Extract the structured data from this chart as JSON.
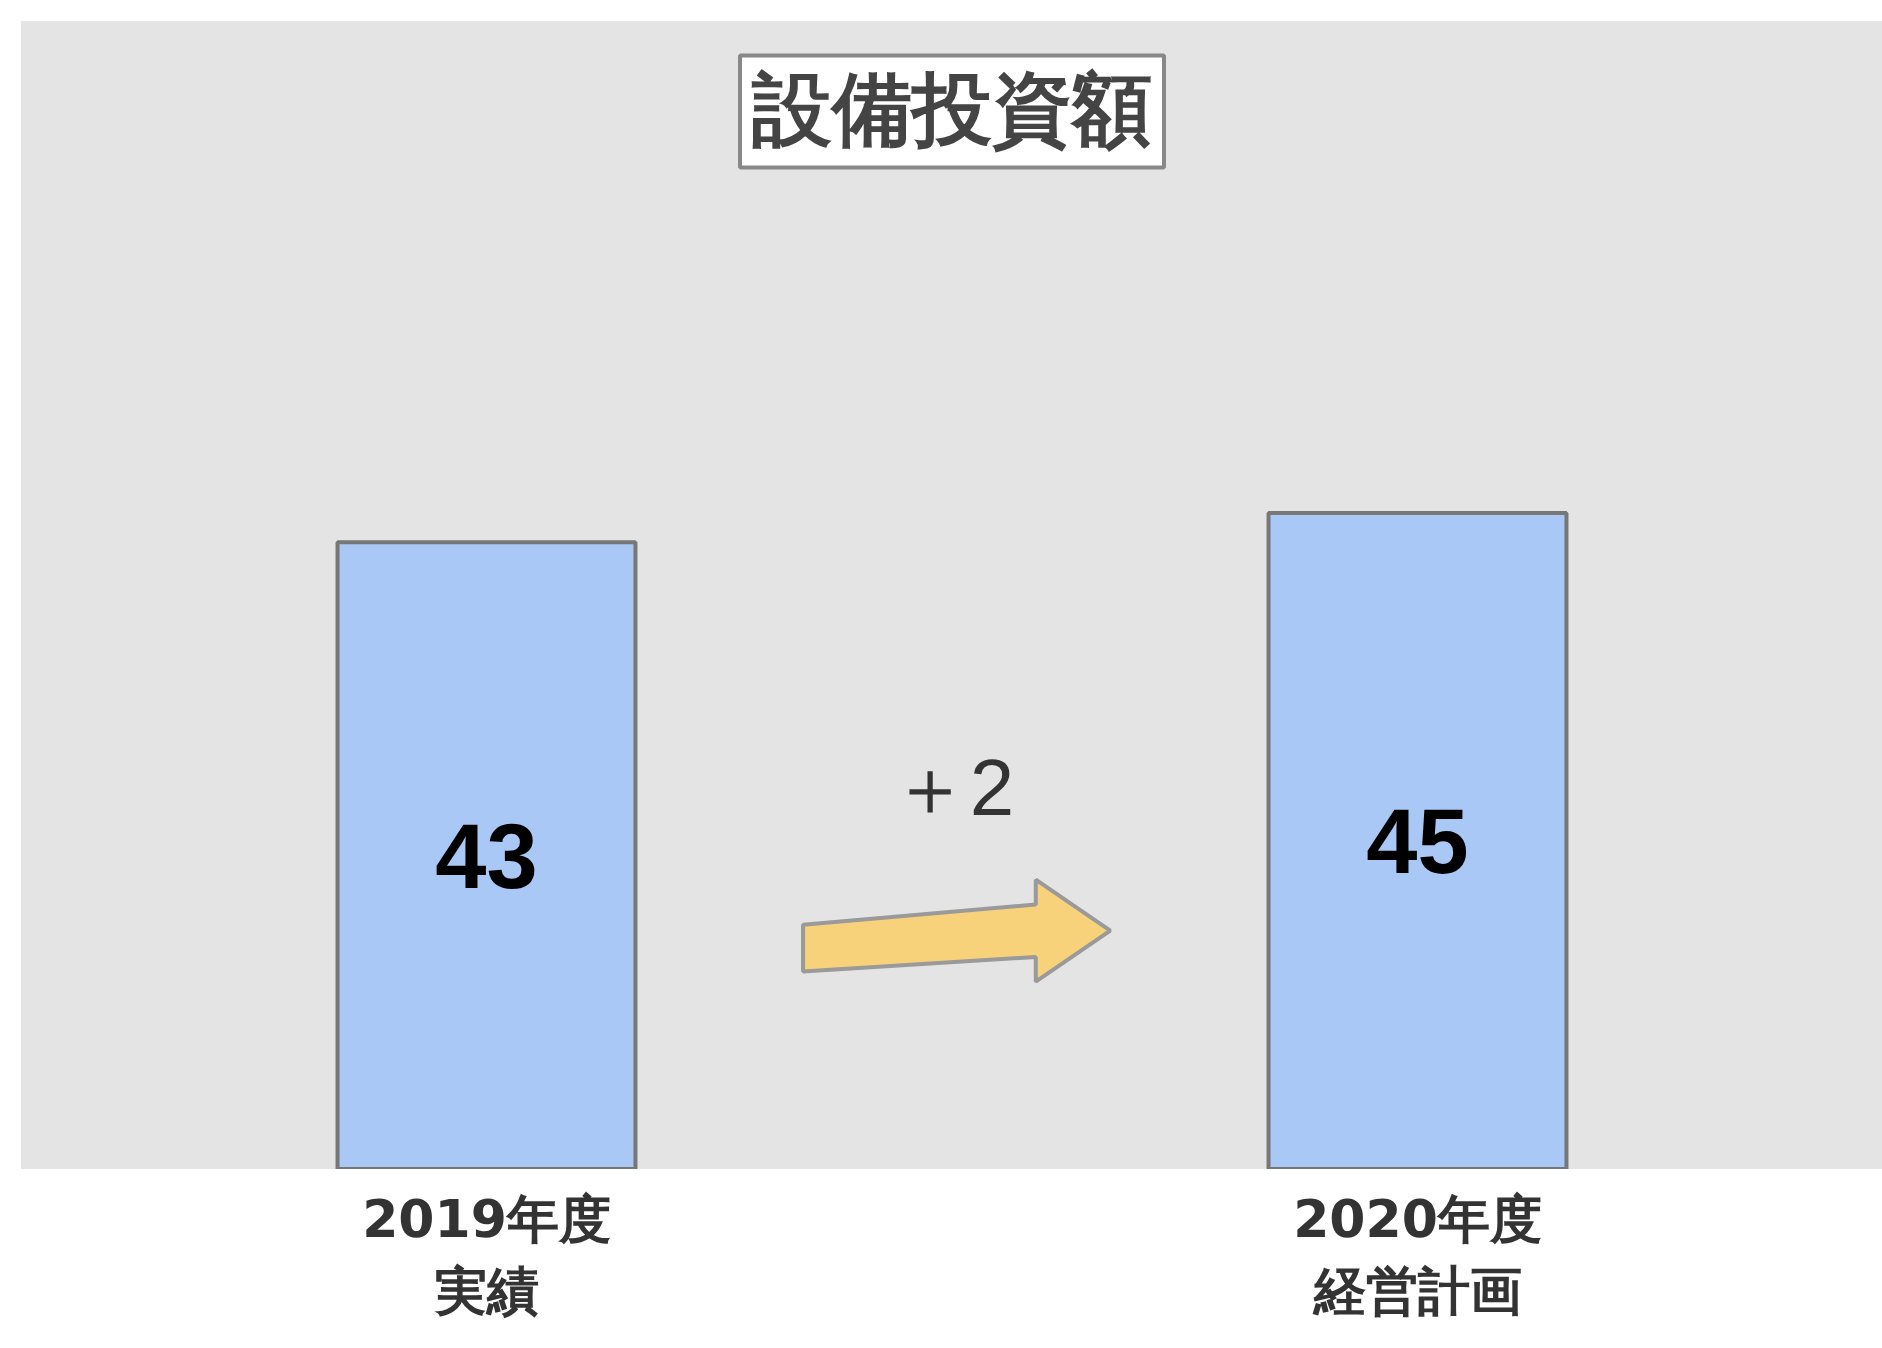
{
  "chart_data": {
    "type": "bar",
    "title": "設備投資額",
    "categories": [
      "2019年度実績",
      "2020年度経営計画"
    ],
    "values": [
      43,
      45
    ],
    "colors": [
      "#a9c8f5",
      "#a9c8f5"
    ],
    "data_labels": true,
    "annotations": [
      "＋2"
    ]
  }
}
